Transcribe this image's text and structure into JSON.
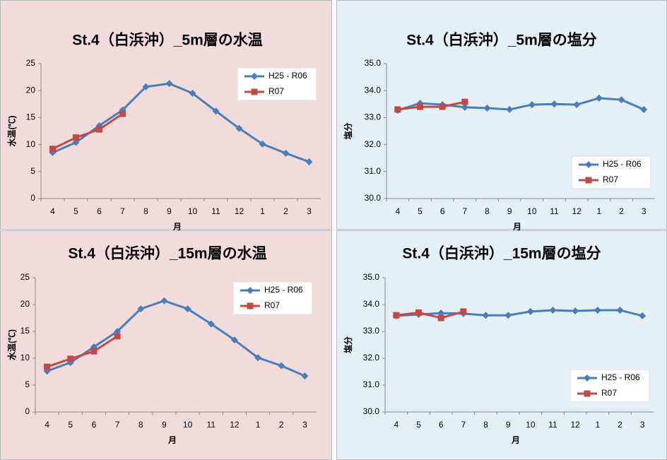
{
  "chart_data": [
    {
      "type": "line",
      "title": "St.4（白浜沖）_5m層の水温",
      "xlabel": "月",
      "ylabel": "水温(℃)",
      "categories": [
        "4",
        "5",
        "6",
        "7",
        "8",
        "9",
        "10",
        "11",
        "12",
        "1",
        "2",
        "3"
      ],
      "series": [
        {
          "name": "H25 - R06",
          "color": "#4a7ebb",
          "marker": "diamond",
          "values": [
            8.5,
            10.4,
            13.5,
            16.4,
            20.7,
            21.3,
            19.5,
            16.2,
            13.0,
            10.1,
            8.4,
            6.8
          ]
        },
        {
          "name": "R07",
          "color": "#be4b48",
          "marker": "square",
          "values": [
            9.2,
            11.3,
            12.8,
            15.7,
            null,
            null,
            null,
            null,
            null,
            null,
            null,
            null
          ]
        }
      ],
      "ylim": [
        0,
        25
      ],
      "yticks": [
        0,
        5,
        10,
        15,
        20,
        25
      ],
      "grid": false,
      "legend": "upper right",
      "background": "#f2dcdb"
    },
    {
      "type": "line",
      "title": "St.4（白浜沖）_5m層の塩分",
      "xlabel": "月",
      "ylabel": "塩分",
      "categories": [
        "4",
        "5",
        "6",
        "7",
        "8",
        "9",
        "10",
        "11",
        "12",
        "1",
        "2",
        "3"
      ],
      "series": [
        {
          "name": "H25 - R06",
          "color": "#4a7ebb",
          "marker": "diamond",
          "values": [
            33.27,
            33.53,
            33.48,
            33.38,
            33.35,
            33.3,
            33.48,
            33.5,
            33.48,
            33.72,
            33.66,
            33.3
          ]
        },
        {
          "name": "R07",
          "color": "#be4b48",
          "marker": "square",
          "values": [
            33.3,
            33.4,
            33.4,
            33.58,
            null,
            null,
            null,
            null,
            null,
            null,
            null,
            null
          ]
        }
      ],
      "ylim": [
        30,
        35
      ],
      "yticks": [
        {
          "value": 30,
          "label": "30.0"
        },
        {
          "value": 31,
          "label": "31.0"
        },
        {
          "value": 32,
          "label": "32.0"
        },
        {
          "value": 33,
          "label": "33.0"
        },
        {
          "value": 34,
          "label": "34.0"
        },
        {
          "value": 35,
          "label": "35.0"
        }
      ],
      "grid": false,
      "legend": "lower right",
      "background": "#e4f0f6"
    },
    {
      "type": "line",
      "title": "St.4（白浜沖）_15m層の水温",
      "xlabel": "月",
      "ylabel": "水温(℃)",
      "categories": [
        "4",
        "5",
        "6",
        "7",
        "8",
        "9",
        "10",
        "11",
        "12",
        "1",
        "2",
        "3"
      ],
      "series": [
        {
          "name": "H25 - R06",
          "color": "#4a7ebb",
          "marker": "diamond",
          "values": [
            7.6,
            9.2,
            12.1,
            15.0,
            19.2,
            20.7,
            19.2,
            16.4,
            13.4,
            10.1,
            8.6,
            6.7
          ]
        },
        {
          "name": "R07",
          "color": "#be4b48",
          "marker": "square",
          "values": [
            8.4,
            9.9,
            11.3,
            14.1,
            null,
            null,
            null,
            null,
            null,
            null,
            null,
            null
          ]
        }
      ],
      "ylim": [
        0,
        25
      ],
      "yticks": [
        0,
        5,
        10,
        15,
        20,
        25
      ],
      "grid": false,
      "legend": "upper right",
      "background": "#f2dcdb"
    },
    {
      "type": "line",
      "title": "St.4（白浜沖）_15m層の塩分",
      "xlabel": "月",
      "ylabel": "塩分",
      "categories": [
        "4",
        "5",
        "6",
        "7",
        "8",
        "9",
        "10",
        "11",
        "12",
        "1",
        "2",
        "3"
      ],
      "series": [
        {
          "name": "H25 - R06",
          "color": "#4a7ebb",
          "marker": "diamond",
          "values": [
            33.58,
            33.63,
            33.68,
            33.66,
            33.6,
            33.6,
            33.74,
            33.79,
            33.76,
            33.79,
            33.79,
            33.58
          ]
        },
        {
          "name": "R07",
          "color": "#be4b48",
          "marker": "square",
          "values": [
            33.6,
            33.7,
            33.5,
            33.74,
            null,
            null,
            null,
            null,
            null,
            null,
            null,
            null
          ]
        }
      ],
      "ylim": [
        30,
        35
      ],
      "yticks": [
        {
          "value": 30,
          "label": "30.0"
        },
        {
          "value": 31,
          "label": "31.0"
        },
        {
          "value": 32,
          "label": "32.0"
        },
        {
          "value": 33,
          "label": "33.0"
        },
        {
          "value": 34,
          "label": "34.0"
        },
        {
          "value": 35,
          "label": "35.0"
        }
      ],
      "grid": false,
      "legend": "lower right",
      "background": "#e4f0f6"
    }
  ]
}
